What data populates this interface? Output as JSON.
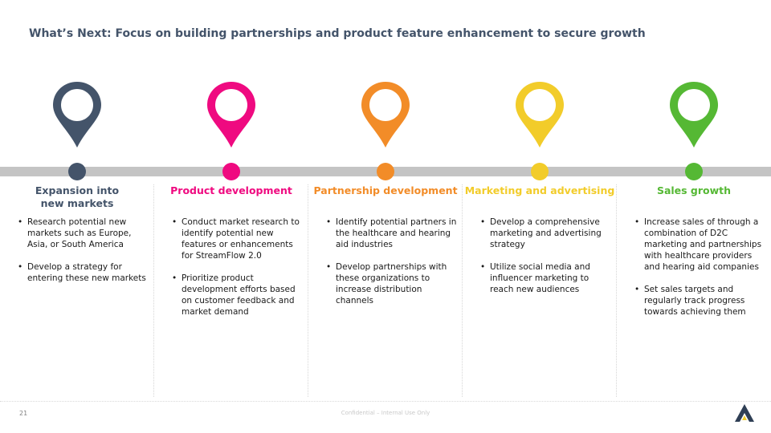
{
  "title": "What’s Next: Focus on building partnerships and product feature enhancement to secure growth",
  "colors": {
    "title": "#44546a",
    "timeline": "#c4c4c4",
    "expansion": "#44546a",
    "product": "#ef0a80",
    "partnership": "#f28c28",
    "marketing": "#f2cc2a",
    "sales": "#55b834"
  },
  "columns": [
    {
      "heading": "Expansion into\nnew markets",
      "color": "#44546a",
      "bullets": [
        "Research potential new markets such as Europe, Asia, or South America",
        "Develop a strategy for entering these new markets"
      ]
    },
    {
      "heading": "Product development",
      "color": "#ef0a80",
      "bullets": [
        "Conduct market research to identify potential new features or enhancements for StreamFlow 2.0",
        "Prioritize product development efforts based on customer feedback and market demand"
      ]
    },
    {
      "heading": "Partnership development",
      "color": "#f28c28",
      "bullets": [
        "Identify potential partners in the healthcare and hearing aid industries",
        "Develop partnerships with these organizations to increase distribution channels"
      ]
    },
    {
      "heading": "Marketing and advertising",
      "color": "#f2cc2a",
      "bullets": [
        "Develop a comprehensive marketing and advertising strategy",
        "Utilize social media and influencer marketing to reach new audiences"
      ]
    },
    {
      "heading": "Sales growth",
      "color": "#55b834",
      "bullets": [
        "Increase sales of through a combination of D2C marketing and partnerships with healthcare providers and hearing aid companies",
        "Set sales targets and regularly track progress towards achieving them"
      ]
    }
  ],
  "footer": {
    "page_number": "21",
    "confidential": "Confidential – Internal Use Only",
    "logo_icon": "company-logo-icon"
  }
}
